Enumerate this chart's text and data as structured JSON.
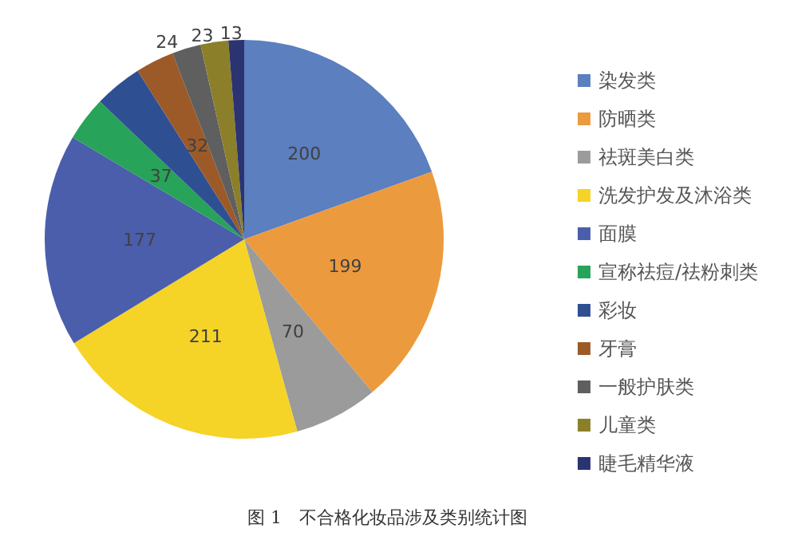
{
  "chart_data": {
    "type": "pie",
    "title": "图 1　不合格化妆品涉及类别统计图",
    "categories": [
      "染发类",
      "防晒类",
      "祛斑美白类",
      "洗发护发及沐浴类",
      "面膜",
      "宣称祛痘/祛粉刺类",
      "彩妆",
      "牙膏",
      "一般护肤类",
      "儿童类",
      "睫毛精华液"
    ],
    "values": [
      200,
      199,
      70,
      211,
      177,
      37,
      40,
      32,
      24,
      23,
      13
    ],
    "value_labels": [
      "200",
      "199",
      "70",
      "211",
      "177",
      "37",
      null,
      "32",
      "24",
      "23",
      "13"
    ],
    "colors": [
      "#5b7fbf",
      "#ec9a3e",
      "#9b9b9b",
      "#f5d327",
      "#4a5eab",
      "#27a35a",
      "#2f4f93",
      "#9c5a28",
      "#5f5f5f",
      "#8c7f2a",
      "#2b3470"
    ],
    "legend": "right"
  }
}
